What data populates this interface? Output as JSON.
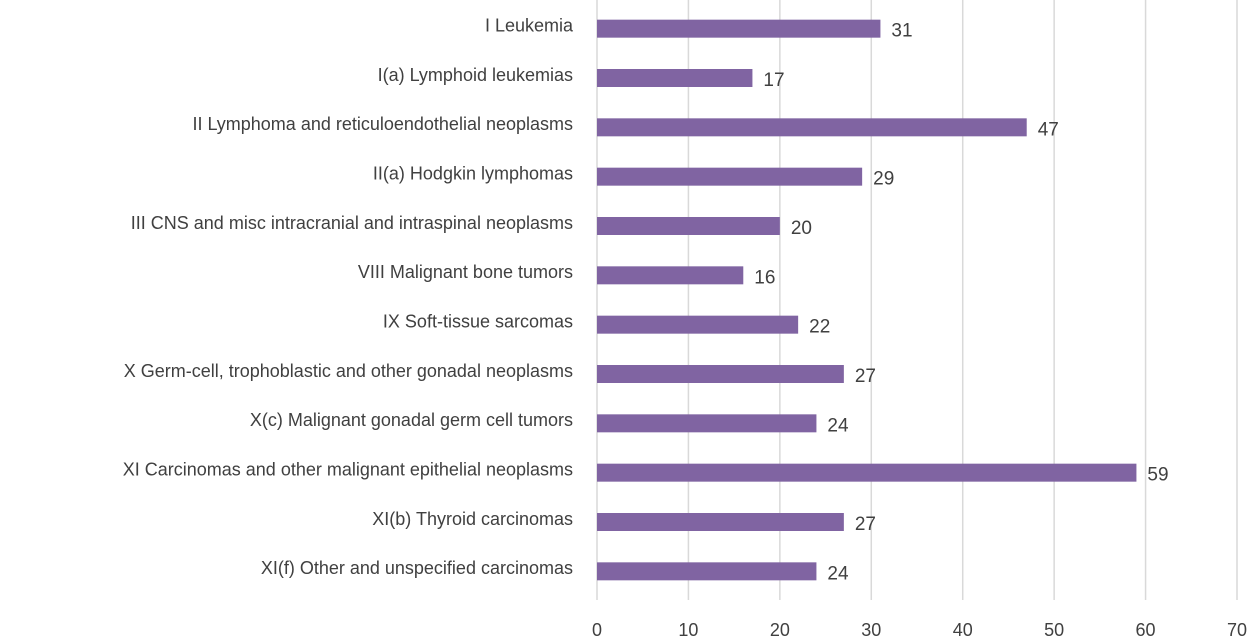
{
  "chart_data": {
    "type": "bar",
    "orientation": "horizontal",
    "categories": [
      "I Leukemia",
      "I(a) Lymphoid leukemias",
      "II Lymphoma and reticuloendothelial neoplasms",
      "II(a) Hodgkin lymphomas",
      "III CNS and misc intracranial and intraspinal neoplasms",
      "VIII Malignant bone tumors",
      "IX Soft-tissue sarcomas",
      "X Germ-cell, trophoblastic and other gonadal neoplasms",
      "X(c) Malignant gonadal germ cell tumors",
      "XI Carcinomas and other malignant epithelial neoplasms",
      "XI(b) Thyroid carcinomas",
      "XI(f) Other and unspecified carcinomas"
    ],
    "values": [
      31,
      17,
      47,
      29,
      20,
      16,
      22,
      27,
      24,
      59,
      27,
      24
    ],
    "color": "#8064a2",
    "xlim": [
      0,
      70
    ],
    "xticks": [
      0,
      10,
      20,
      30,
      40,
      50,
      60,
      70
    ],
    "grid": true
  }
}
